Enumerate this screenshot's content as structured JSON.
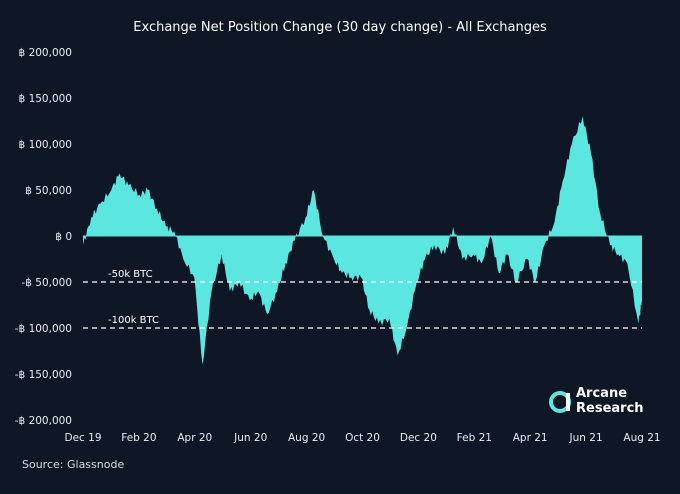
{
  "chart_data": {
    "type": "area",
    "title": "Exchange Net Position Change (30 day change) - All Exchanges",
    "source": "Source: Glassnode",
    "x_ticks": [
      "Dec 19",
      "Feb 20",
      "Apr 20",
      "Jun 20",
      "Aug 20",
      "Oct 20",
      "Dec 20",
      "Feb 21",
      "Apr 21",
      "Jun 21",
      "Aug 21"
    ],
    "y_ticks": [
      "฿ 200,000",
      "฿ 150,000",
      "฿ 100,000",
      "฿ 50,000",
      "฿ 0",
      "-฿ 50,000",
      "-฿ 100,000",
      "-฿ 150,000",
      "-฿ 200,000"
    ],
    "ylim": [
      -200000,
      200000
    ],
    "fill_color": "#5ce6e0",
    "background": "#0f1726",
    "reference_lines": [
      {
        "value": -50000,
        "label": "-50k BTC"
      },
      {
        "value": -100000,
        "label": "-100k BTC"
      }
    ],
    "series": [
      {
        "x": [
          "2019-12-01",
          "2019-12-10",
          "2019-12-20",
          "2020-01-01",
          "2020-01-10",
          "2020-01-20",
          "2020-02-01",
          "2020-02-10",
          "2020-02-20",
          "2020-03-01",
          "2020-03-10",
          "2020-03-20",
          "2020-04-01",
          "2020-04-10",
          "2020-04-20",
          "2020-05-01",
          "2020-05-10",
          "2020-05-20",
          "2020-06-01",
          "2020-06-10",
          "2020-06-20",
          "2020-07-01",
          "2020-07-10",
          "2020-07-20",
          "2020-08-01",
          "2020-08-10",
          "2020-08-20",
          "2020-09-01",
          "2020-09-10",
          "2020-09-20",
          "2020-10-01",
          "2020-10-10",
          "2020-10-20",
          "2020-11-01",
          "2020-11-10",
          "2020-11-20",
          "2020-12-01",
          "2020-12-10",
          "2020-12-20",
          "2021-01-01",
          "2021-01-10",
          "2021-01-20",
          "2021-02-01",
          "2021-02-10",
          "2021-02-20",
          "2021-03-01",
          "2021-03-10",
          "2021-03-20",
          "2021-04-01",
          "2021-04-10",
          "2021-04-20",
          "2021-05-01",
          "2021-05-10",
          "2021-05-20",
          "2021-06-01",
          "2021-06-10",
          "2021-06-20",
          "2021-07-01",
          "2021-07-10",
          "2021-07-20",
          "2021-08-01",
          "2021-08-05"
        ],
        "values": [
          -10000,
          20000,
          35000,
          50000,
          68000,
          55000,
          45000,
          50000,
          30000,
          10000,
          5000,
          -25000,
          -45000,
          -140000,
          -60000,
          -20000,
          -60000,
          -50000,
          -70000,
          -60000,
          -85000,
          -60000,
          -30000,
          -5000,
          20000,
          50000,
          0,
          -25000,
          -40000,
          -45000,
          -45000,
          -80000,
          -95000,
          -90000,
          -130000,
          -100000,
          -50000,
          -25000,
          -10000,
          -20000,
          10000,
          -25000,
          -20000,
          -30000,
          0,
          -40000,
          -20000,
          -50000,
          -25000,
          -50000,
          -10000,
          15000,
          60000,
          100000,
          130000,
          90000,
          25000,
          -10000,
          -20000,
          -30000,
          -95000,
          -70000
        ]
      }
    ]
  }
}
